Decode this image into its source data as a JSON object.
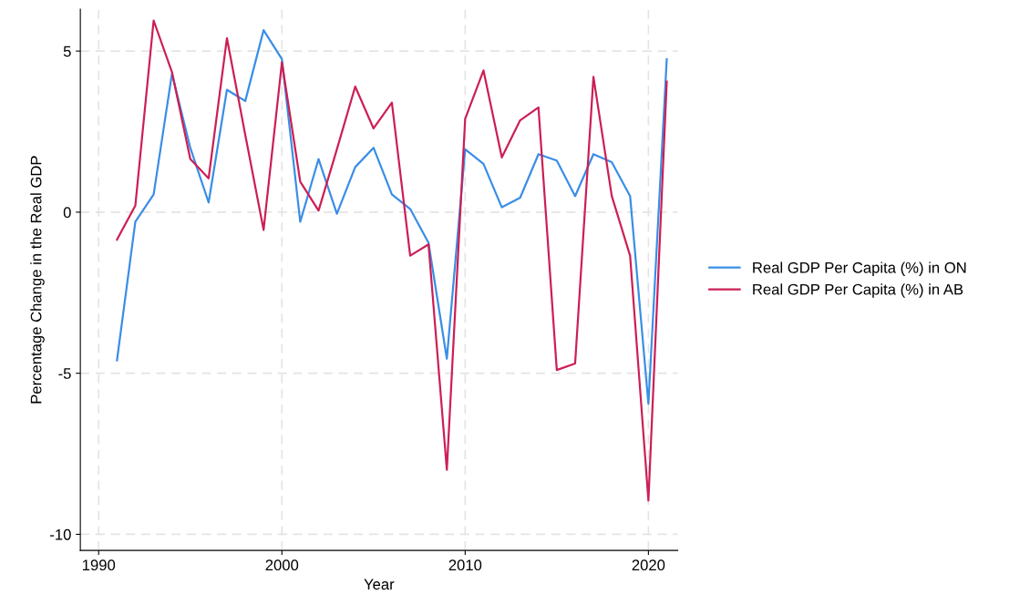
{
  "chart_data": {
    "type": "line",
    "xlabel": "Year",
    "ylabel": "Percentage Change in the Real GDP",
    "x": [
      1991,
      1992,
      1993,
      1994,
      1995,
      1996,
      1997,
      1998,
      1999,
      2000,
      2001,
      2002,
      2003,
      2004,
      2005,
      2006,
      2007,
      2008,
      2009,
      2010,
      2011,
      2012,
      2013,
      2014,
      2015,
      2016,
      2017,
      2018,
      2019,
      2020,
      2021
    ],
    "series": [
      {
        "name": "Real GDP Per Capita (%) in ON",
        "color": "#3a8ee6",
        "values": [
          -4.6,
          -0.3,
          0.55,
          4.3,
          2.0,
          0.3,
          3.8,
          3.45,
          5.65,
          4.75,
          -0.3,
          1.65,
          -0.05,
          1.4,
          2.0,
          0.55,
          0.1,
          -0.95,
          -4.55,
          1.95,
          1.5,
          0.15,
          0.45,
          1.8,
          1.6,
          0.5,
          1.8,
          1.55,
          0.5,
          -5.95,
          4.75
        ]
      },
      {
        "name": "Real GDP Per Capita (%) in AB",
        "color": "#cc1f55",
        "values": [
          -0.85,
          0.2,
          5.95,
          4.35,
          1.65,
          1.05,
          5.4,
          2.4,
          -0.55,
          4.65,
          0.95,
          0.05,
          1.95,
          3.9,
          2.6,
          3.4,
          -1.35,
          -1.0,
          -8.0,
          2.9,
          4.4,
          1.7,
          2.85,
          3.25,
          -4.9,
          -4.7,
          4.2,
          0.5,
          -1.35,
          -8.95,
          4.05
        ]
      }
    ],
    "xlim": [
      1989,
      2021.6
    ],
    "ylim": [
      -10.5,
      6.3
    ],
    "xticks": [
      1990,
      2000,
      2010,
      2020
    ],
    "yticks": [
      -10,
      -5,
      0,
      5
    ],
    "grid": true,
    "legend": "right",
    "marker": "none",
    "line_style": "solid"
  }
}
